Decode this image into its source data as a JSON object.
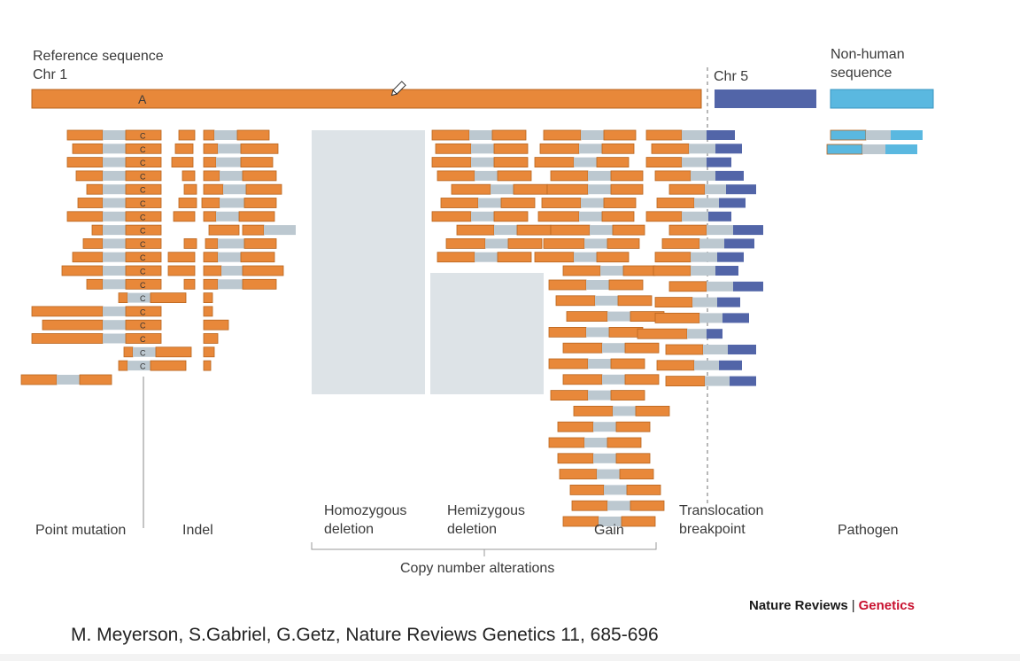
{
  "labels": {
    "reference": "Reference sequence\nChr 1",
    "ref_base": "A",
    "chr5": "Chr 5",
    "nonhuman": "Non-human\nsequence",
    "read_base": "C"
  },
  "categories": {
    "point_mutation": "Point mutation",
    "indel": "Indel",
    "homozygous": "Homozygous\ndeletion",
    "hemizygous": "Hemizygous\ndeletion",
    "gain": "Gain",
    "translocation": "Translocation\nbreakpoint",
    "pathogen": "Pathogen",
    "copy_number": "Copy number alterations"
  },
  "brand": {
    "name": "Nature Reviews",
    "separator": "|",
    "journal": "Genetics"
  },
  "citation": "M. Meyerson, S.Gabriel, G.Getz, Nature Reviews Genetics 11, 685-696",
  "colors": {
    "orange": "#e8883a",
    "orange_border": "#b8651f",
    "grey": "#bcc8d0",
    "navy": "#5265a8",
    "cyan": "#5ab8e0",
    "deletion_box": "#dde3e7",
    "text": "#3a3a3a",
    "brand_red": "#c8102e"
  }
}
